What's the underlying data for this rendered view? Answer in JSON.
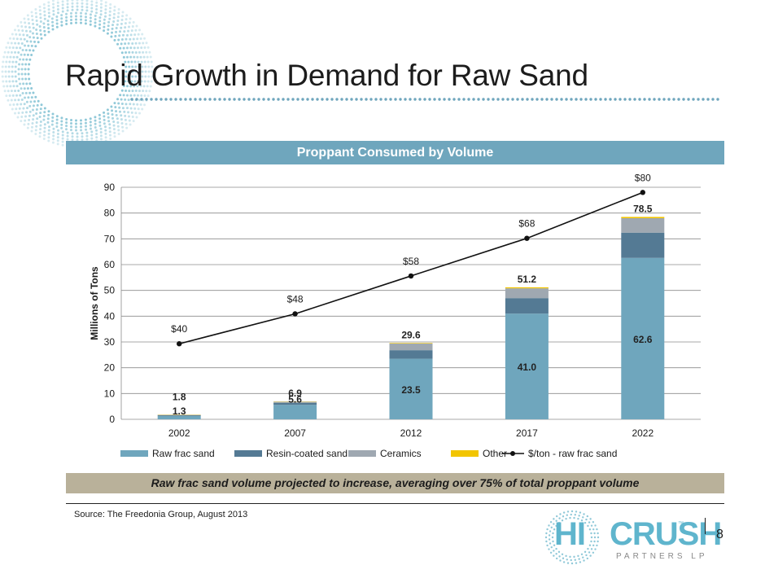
{
  "slide": {
    "title": "Rapid Growth in Demand for Raw Sand",
    "chart_banner": "Proppant Consumed by Volume",
    "note": "Raw frac sand volume projected to increase, averaging over 75% of total proppant volume",
    "source": "Source: The Freedonia Group, August 2013",
    "page_number": "8"
  },
  "logo": {
    "hi": "HI",
    "crush": "CRUSH",
    "tm": "™",
    "sub": "PARTNERS LP"
  },
  "colors": {
    "raw": "#6fa6bd",
    "resin": "#547a94",
    "ceramics": "#9fa8b1",
    "other": "#f2c500",
    "line": "#111111",
    "accent": "#6fa6bd",
    "note_bg": "#b9b19a"
  },
  "chart_data": {
    "type": "bar",
    "stacked": true,
    "categories": [
      "2002",
      "2007",
      "2012",
      "2017",
      "2022"
    ],
    "ylabel": "Millions of Tons",
    "ylim": [
      0,
      90
    ],
    "yticks": [
      0,
      10,
      20,
      30,
      40,
      50,
      60,
      70,
      80,
      90
    ],
    "grid": true,
    "legend_position": "bottom",
    "series": [
      {
        "name": "Raw frac sand",
        "key": "raw",
        "values": [
          1.3,
          5.6,
          23.5,
          41.0,
          62.6
        ]
      },
      {
        "name": "Resin-coated sand",
        "key": "resin",
        "values": [
          0.3,
          0.8,
          3.3,
          6.0,
          9.8
        ]
      },
      {
        "name": "Ceramics",
        "key": "ceramics",
        "values": [
          0.1,
          0.4,
          2.6,
          3.8,
          5.6
        ]
      },
      {
        "name": "Other",
        "key": "other",
        "values": [
          0.1,
          0.1,
          0.2,
          0.4,
          0.5
        ]
      }
    ],
    "raw_labels": [
      "1.3",
      "5.6",
      "23.5",
      "41.0",
      "62.6"
    ],
    "total_labels": [
      "1.8",
      "6.9",
      "29.6",
      "51.2",
      "78.5"
    ],
    "line_series": {
      "name": "$/ton - raw frac sand",
      "y_positions": [
        29.3,
        40.9,
        55.6,
        70.2,
        88.0
      ],
      "labels": [
        "$40",
        "$48",
        "$58",
        "$68",
        "$80"
      ]
    }
  }
}
